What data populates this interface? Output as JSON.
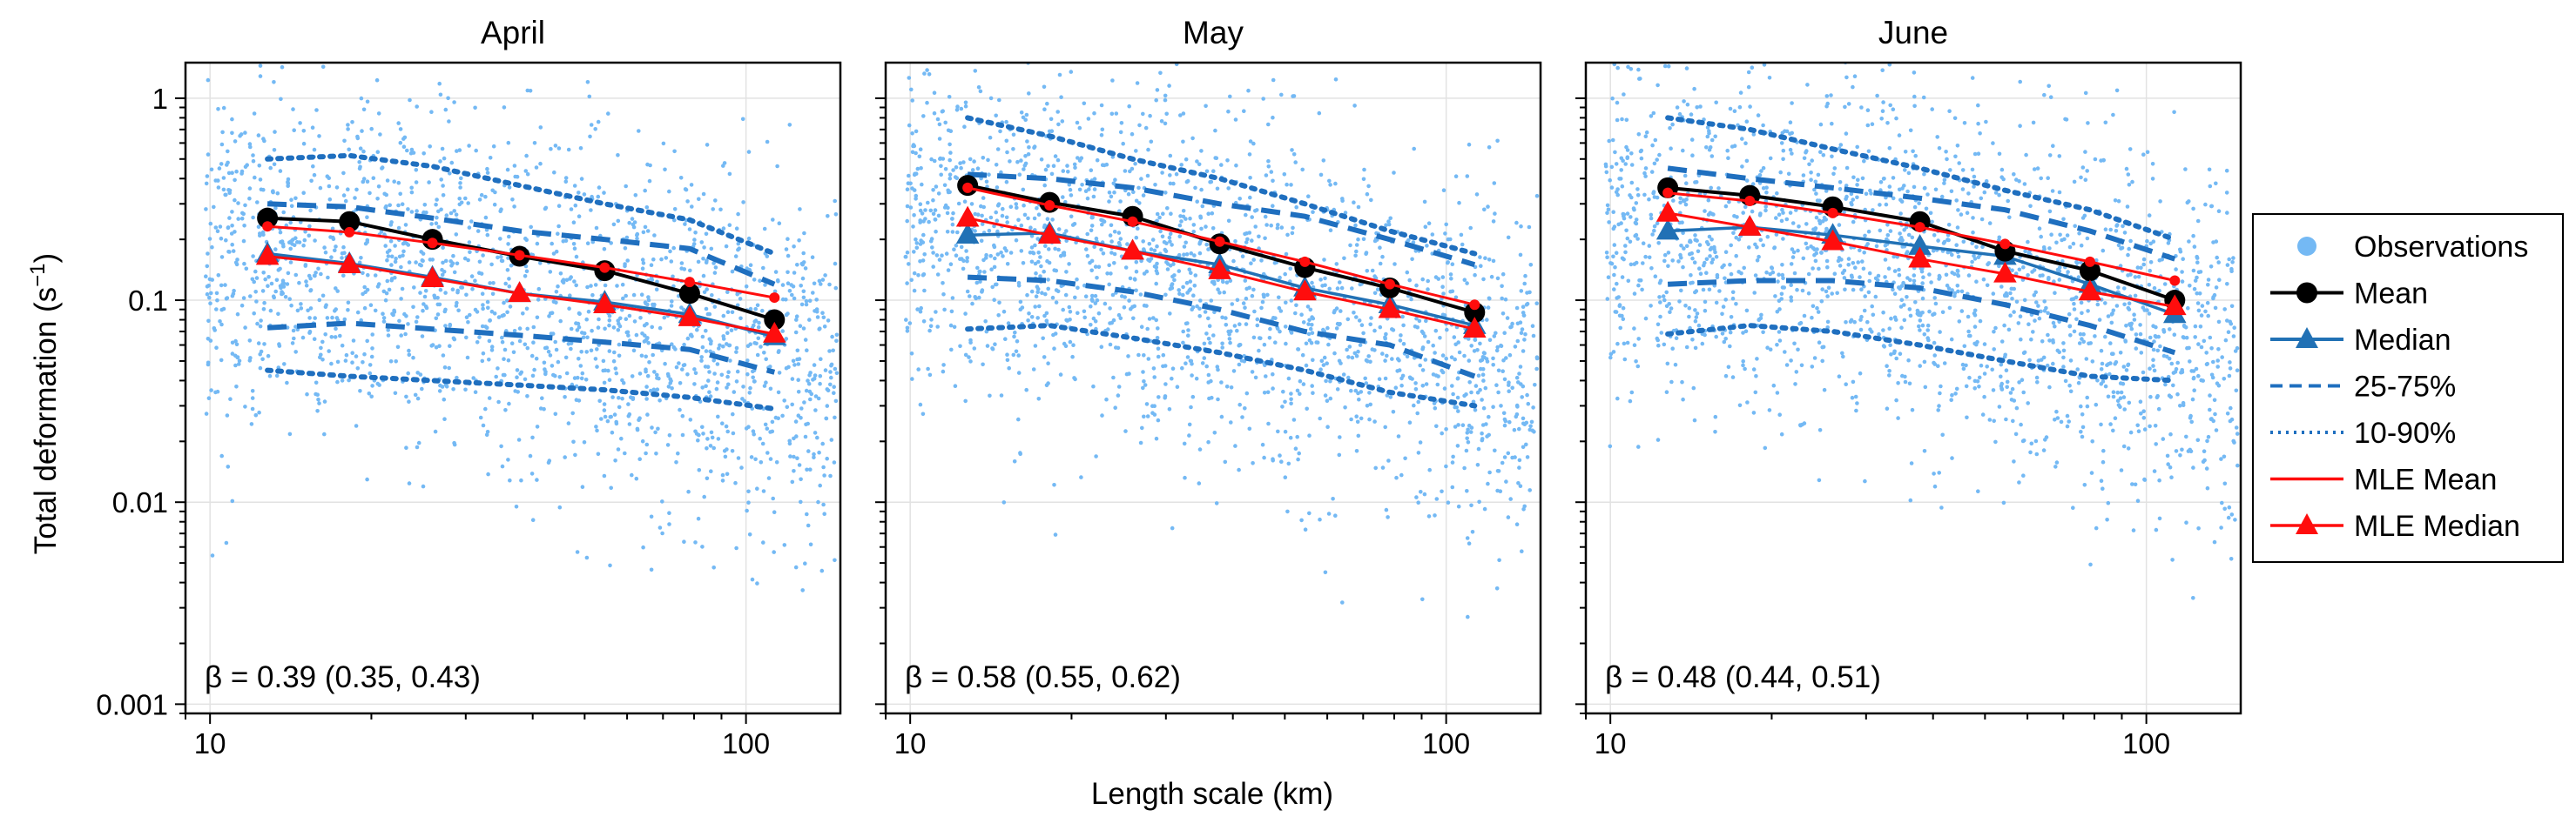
{
  "figure": {
    "xlabel": "Length scale (km)",
    "ylabel_main": "Total deformation (s",
    "ylabel_exp": "−1",
    "ylabel_tail": ")"
  },
  "colors": {
    "observations": "#74b9f4",
    "mean": "#000000",
    "median": "#2171b5",
    "quantile": "#1f6fbf",
    "mle": "#ff0d0d",
    "grid": "#e2e2e2"
  },
  "legend": {
    "placement": "right, outside",
    "items": [
      {
        "label": "Observations",
        "style": "dot",
        "icon": "filled-circle-icon"
      },
      {
        "label": "Mean",
        "style": "line-circle",
        "icon": "black-circle-marker-icon"
      },
      {
        "label": "Median",
        "style": "line-triangle",
        "icon": "blue-triangle-marker-icon"
      },
      {
        "label": "25-75%",
        "style": "dashed",
        "icon": "dashed-line-icon"
      },
      {
        "label": "10-90%",
        "style": "dotted",
        "icon": "dotted-line-icon"
      },
      {
        "label": "MLE Mean",
        "style": "red-line",
        "icon": "red-line-icon"
      },
      {
        "label": "MLE Median",
        "style": "red-line-triangle",
        "icon": "red-triangle-marker-icon"
      }
    ]
  },
  "chart_data": [
    {
      "type": "scatter",
      "title": "April",
      "xscale": "log",
      "yscale": "log",
      "xlim": [
        9,
        150
      ],
      "ylim": [
        0.0009,
        1.5
      ],
      "xticks": [
        "10",
        "100"
      ],
      "yticks": [
        "1",
        "0.1",
        "0.01",
        "0.001"
      ],
      "grid": true,
      "annotation": "β = 0.39 (0.35, 0.43)",
      "x": [
        12.8,
        18.2,
        26.0,
        37.8,
        54.5,
        78.5,
        113
      ],
      "series": [
        {
          "name": "Mean",
          "values": [
            0.255,
            0.245,
            0.2,
            0.165,
            0.14,
            0.108,
            0.08
          ]
        },
        {
          "name": "Median",
          "values": [
            0.17,
            0.152,
            0.13,
            0.108,
            0.098,
            0.085,
            0.066
          ]
        },
        {
          "name": "MLE Mean",
          "values": [
            0.232,
            0.217,
            0.192,
            0.167,
            0.145,
            0.123,
            0.103
          ]
        },
        {
          "name": "MLE Median",
          "values": [
            0.165,
            0.15,
            0.128,
            0.108,
            0.095,
            0.082,
            0.068
          ]
        },
        {
          "name": "25-75%",
          "lower": [
            0.073,
            0.077,
            0.072,
            0.067,
            0.062,
            0.057,
            0.044
          ],
          "upper": [
            0.3,
            0.29,
            0.255,
            0.22,
            0.2,
            0.18,
            0.12
          ]
        },
        {
          "name": "10-90%",
          "lower": [
            0.045,
            0.042,
            0.04,
            0.038,
            0.036,
            0.033,
            0.029
          ],
          "upper": [
            0.5,
            0.52,
            0.46,
            0.37,
            0.3,
            0.25,
            0.17
          ]
        }
      ]
    },
    {
      "type": "scatter",
      "title": "May",
      "xscale": "log",
      "yscale": "log",
      "xlim": [
        9,
        150
      ],
      "ylim": [
        0.0009,
        1.5
      ],
      "xticks": [
        "10",
        "100"
      ],
      "yticks": [
        "1",
        "0.1",
        "0.01",
        "0.001"
      ],
      "grid": true,
      "annotation": "β = 0.58 (0.55, 0.62)",
      "x": [
        12.8,
        18.2,
        26.0,
        37.8,
        54.5,
        78.5,
        113
      ],
      "series": [
        {
          "name": "Mean",
          "values": [
            0.37,
            0.305,
            0.26,
            0.19,
            0.145,
            0.115,
            0.087
          ]
        },
        {
          "name": "Median",
          "values": [
            0.21,
            0.215,
            0.175,
            0.15,
            0.115,
            0.095,
            0.075
          ]
        },
        {
          "name": "MLE Mean",
          "values": [
            0.36,
            0.295,
            0.245,
            0.195,
            0.155,
            0.12,
            0.095
          ]
        },
        {
          "name": "MLE Median",
          "values": [
            0.255,
            0.21,
            0.175,
            0.14,
            0.11,
            0.09,
            0.072
          ]
        },
        {
          "name": "25-75%",
          "lower": [
            0.13,
            0.125,
            0.11,
            0.09,
            0.07,
            0.06,
            0.042
          ],
          "upper": [
            0.42,
            0.4,
            0.36,
            0.3,
            0.26,
            0.2,
            0.15
          ]
        },
        {
          "name": "10-90%",
          "lower": [
            0.072,
            0.075,
            0.065,
            0.055,
            0.045,
            0.035,
            0.03
          ],
          "upper": [
            0.8,
            0.65,
            0.5,
            0.4,
            0.3,
            0.22,
            0.17
          ]
        }
      ]
    },
    {
      "type": "scatter",
      "title": "June",
      "xscale": "log",
      "yscale": "log",
      "xlim": [
        9,
        150
      ],
      "ylim": [
        0.0009,
        1.5
      ],
      "xticks": [
        "10",
        "100"
      ],
      "yticks": [
        "1",
        "0.1",
        "0.01",
        "0.001"
      ],
      "grid": true,
      "annotation": "β = 0.48 (0.44, 0.51)",
      "x": [
        12.8,
        18.2,
        26.0,
        37.8,
        54.5,
        78.5,
        113
      ],
      "series": [
        {
          "name": "Mean",
          "values": [
            0.36,
            0.33,
            0.29,
            0.245,
            0.175,
            0.14,
            0.1
          ]
        },
        {
          "name": "Median",
          "values": [
            0.22,
            0.23,
            0.21,
            0.185,
            0.165,
            0.12,
            0.085
          ]
        },
        {
          "name": "MLE Mean",
          "values": [
            0.34,
            0.31,
            0.27,
            0.23,
            0.19,
            0.155,
            0.125
          ]
        },
        {
          "name": "MLE Median",
          "values": [
            0.27,
            0.23,
            0.195,
            0.16,
            0.135,
            0.11,
            0.093
          ]
        },
        {
          "name": "25-75%",
          "lower": [
            0.12,
            0.125,
            0.125,
            0.115,
            0.095,
            0.075,
            0.055
          ],
          "upper": [
            0.45,
            0.4,
            0.36,
            0.32,
            0.28,
            0.22,
            0.16
          ]
        },
        {
          "name": "10-90%",
          "lower": [
            0.068,
            0.075,
            0.07,
            0.06,
            0.05,
            0.042,
            0.04
          ],
          "upper": [
            0.8,
            0.7,
            0.56,
            0.45,
            0.35,
            0.28,
            0.2
          ]
        }
      ]
    }
  ]
}
